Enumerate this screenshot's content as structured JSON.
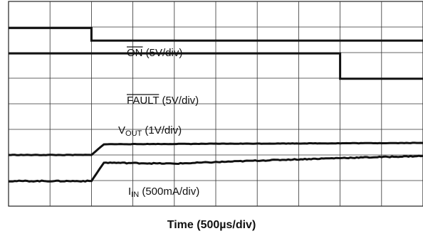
{
  "chart_data": {
    "type": "line",
    "title": "",
    "xlabel": "Time (500µs/div)",
    "ylabel": "",
    "grid": true,
    "x_divisions": 10,
    "y_divisions": 8,
    "xlim": [
      0,
      5000
    ],
    "x_unit": "µs",
    "y_unit": "div",
    "ylim": [
      0,
      8
    ],
    "series": [
      {
        "name": "ON",
        "overbar": "ON",
        "suffix": " (5V/div)",
        "x": [
          0,
          1000,
          1000,
          5000
        ],
        "y": [
          6.96,
          6.96,
          6.47,
          6.47
        ]
      },
      {
        "name": "FAULT",
        "overbar": "FAULT",
        "suffix": " (5V/div)",
        "x": [
          0,
          4000,
          4000,
          5000
        ],
        "y": [
          5.97,
          5.97,
          4.98,
          4.98
        ]
      },
      {
        "name": "VOUT",
        "main": "V",
        "sub": "OUT",
        "suffix": " (1V/div)",
        "x": [
          0,
          1000,
          1150,
          5000
        ],
        "y": [
          2.0,
          2.0,
          2.42,
          2.47
        ]
      },
      {
        "name": "IN",
        "main": "I",
        "sub": "IN",
        "suffix": " (500mA/div)",
        "x": [
          0,
          1000,
          1150,
          2000,
          3000,
          4000,
          5000
        ],
        "y": [
          0.98,
          0.98,
          1.7,
          1.66,
          1.78,
          1.88,
          1.96
        ]
      }
    ]
  }
}
